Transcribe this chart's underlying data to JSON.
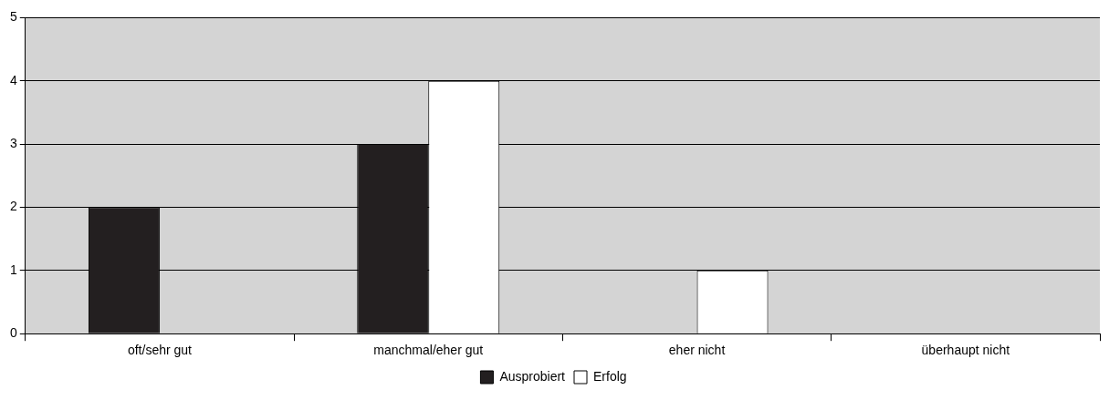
{
  "chart_data": {
    "type": "bar",
    "categories": [
      "oft/sehr gut",
      "manchmal/eher gut",
      "eher nicht",
      "überhaupt nicht"
    ],
    "series": [
      {
        "name": "Ausprobiert",
        "color": "#231f20",
        "values": [
          2,
          3,
          0,
          0
        ]
      },
      {
        "name": "Erfolg",
        "color": "#ffffff",
        "values": [
          0,
          4,
          1,
          0
        ]
      }
    ],
    "ylim": [
      0,
      5
    ],
    "yticks": [
      0,
      1,
      2,
      3,
      4,
      5
    ],
    "grid": "y",
    "legend": "bottom"
  }
}
